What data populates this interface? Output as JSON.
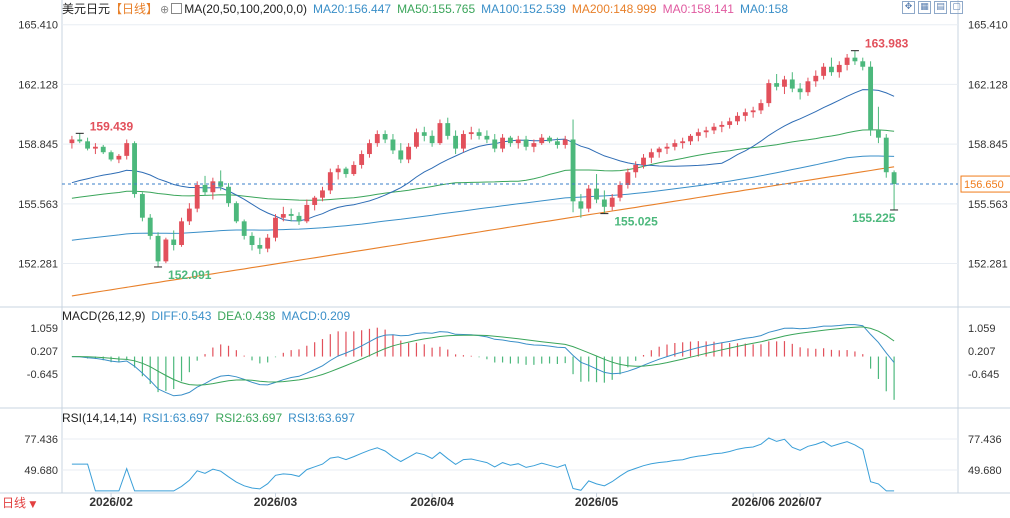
{
  "header": {
    "symbol": "美元日元",
    "period_tag": "【日线】",
    "period_icon": "circle-plus-icon",
    "ma_icon": "checkbox-icon",
    "ma_label": "MA(20,50,100,200,0,0)",
    "ma20": "MA20:156.447",
    "ma50": "MA50:155.765",
    "ma100": "MA100:152.539",
    "ma200": "MA200:148.999",
    "ma0a": "MA0:158.141",
    "ma0b": "MA0:158"
  },
  "macd_header": {
    "label": "MACD(26,12,9)",
    "diff": "DIFF:0.543",
    "dea": "DEA:0.438",
    "macd": "MACD:0.209"
  },
  "rsi_header": {
    "label": "RSI(14,14,14)",
    "rsi1": "RSI1:63.697",
    "rsi2": "RSI2:63.697",
    "rsi3": "RSI3:63.697"
  },
  "toolbar": {
    "icons": [
      "crosshair-icon",
      "grid-icon",
      "layout-icon",
      "window-icon"
    ]
  },
  "period_selector": {
    "label": "日线",
    "icon": "dropdown-icon"
  },
  "colors": {
    "up": "#e2505b",
    "down": "#4cb87c",
    "ma20": "#2f6db5",
    "ma50": "#3aa55a",
    "ma100": "#3a8fc8",
    "ma200": "#e8802a",
    "diff": "#3a8fc8",
    "dea": "#3aa55a",
    "rsi": "#3a9fd8",
    "ma0": "#e05aa0",
    "price_tag": "#f07b1a",
    "grid": "#e8edf3",
    "axis_text": "#333333"
  },
  "chart_data": [
    {
      "type": "candlestick",
      "name": "美元日元 日线",
      "y_ticks": [
        "165.410",
        "162.128",
        "158.845",
        "155.563",
        "152.281"
      ],
      "ylim": [
        150.0,
        166.0
      ],
      "x_month_labels": [
        "2026/02",
        "2026/03",
        "2026/04",
        "2026/05",
        "2026/06",
        "2026/07"
      ],
      "current_price": "156.650",
      "annotations": {
        "high_start": "159.439",
        "low_feb": "152.091",
        "low_may": "155.025",
        "high_jul": "163.983",
        "low_end": "155.225"
      },
      "ohlc": [
        [
          158.9,
          159.3,
          158.6,
          159.1
        ],
        [
          159.1,
          159.44,
          158.9,
          159.0
        ],
        [
          159.0,
          159.2,
          158.5,
          158.6
        ],
        [
          158.6,
          158.9,
          158.3,
          158.7
        ],
        [
          158.7,
          158.8,
          158.3,
          158.4
        ],
        [
          158.4,
          158.5,
          157.9,
          158.0
        ],
        [
          158.0,
          158.3,
          157.8,
          158.2
        ],
        [
          158.2,
          159.1,
          158.0,
          158.9
        ],
        [
          158.9,
          159.0,
          155.9,
          156.1
        ],
        [
          156.1,
          156.2,
          154.6,
          154.8
        ],
        [
          154.8,
          155.0,
          153.6,
          153.8
        ],
        [
          153.8,
          154.0,
          152.09,
          152.4
        ],
        [
          152.4,
          153.7,
          152.3,
          153.6
        ],
        [
          153.6,
          154.1,
          153.0,
          153.3
        ],
        [
          153.3,
          154.8,
          153.2,
          154.6
        ],
        [
          154.6,
          155.6,
          154.4,
          155.3
        ],
        [
          155.3,
          156.8,
          155.1,
          156.6
        ],
        [
          156.6,
          157.1,
          156.0,
          156.2
        ],
        [
          156.2,
          157.0,
          155.8,
          156.8
        ],
        [
          156.8,
          157.4,
          156.3,
          156.5
        ],
        [
          156.5,
          156.7,
          155.4,
          155.6
        ],
        [
          155.6,
          155.7,
          154.5,
          154.6
        ],
        [
          154.6,
          154.7,
          153.6,
          153.8
        ],
        [
          153.8,
          154.0,
          153.0,
          153.3
        ],
        [
          153.3,
          153.7,
          152.8,
          153.1
        ],
        [
          153.1,
          153.9,
          152.9,
          153.7
        ],
        [
          153.7,
          155.0,
          153.5,
          154.8
        ],
        [
          154.8,
          155.4,
          154.6,
          155.0
        ],
        [
          155.0,
          155.3,
          154.6,
          154.9
        ],
        [
          154.9,
          155.1,
          154.4,
          154.6
        ],
        [
          154.6,
          155.8,
          154.5,
          155.5
        ],
        [
          155.5,
          156.0,
          155.2,
          155.9
        ],
        [
          155.9,
          156.5,
          155.7,
          156.3
        ],
        [
          156.3,
          157.5,
          156.1,
          157.3
        ],
        [
          157.3,
          157.7,
          156.9,
          157.5
        ],
        [
          157.5,
          157.6,
          157.0,
          157.2
        ],
        [
          157.2,
          157.9,
          157.1,
          157.7
        ],
        [
          157.7,
          158.5,
          157.5,
          158.3
        ],
        [
          158.3,
          159.1,
          158.1,
          158.9
        ],
        [
          158.9,
          159.6,
          158.7,
          159.4
        ],
        [
          159.4,
          159.6,
          158.9,
          159.1
        ],
        [
          159.1,
          159.4,
          158.3,
          158.5
        ],
        [
          158.5,
          158.9,
          157.8,
          158.0
        ],
        [
          158.0,
          158.9,
          157.8,
          158.7
        ],
        [
          158.7,
          159.7,
          158.6,
          159.5
        ],
        [
          159.5,
          159.8,
          159.0,
          159.3
        ],
        [
          159.3,
          159.6,
          158.7,
          158.9
        ],
        [
          158.9,
          160.2,
          158.8,
          160.0
        ],
        [
          160.0,
          160.3,
          159.1,
          159.3
        ],
        [
          159.3,
          159.6,
          158.3,
          158.6
        ],
        [
          158.6,
          159.6,
          158.4,
          159.4
        ],
        [
          159.4,
          159.8,
          159.1,
          159.5
        ],
        [
          159.5,
          159.7,
          159.1,
          159.3
        ],
        [
          159.3,
          159.6,
          158.9,
          159.1
        ],
        [
          159.1,
          159.4,
          158.4,
          158.6
        ],
        [
          158.6,
          159.4,
          158.4,
          159.2
        ],
        [
          159.2,
          159.3,
          158.7,
          158.9
        ],
        [
          158.9,
          159.3,
          158.6,
          159.1
        ],
        [
          159.1,
          159.3,
          158.5,
          158.7
        ],
        [
          158.7,
          159.1,
          158.4,
          158.9
        ],
        [
          158.9,
          159.4,
          158.8,
          159.2
        ],
        [
          159.2,
          159.3,
          158.9,
          159.0
        ],
        [
          159.0,
          159.2,
          158.6,
          158.8
        ],
        [
          158.8,
          159.3,
          158.6,
          159.1
        ],
        [
          159.1,
          160.2,
          155.1,
          155.7
        ],
        [
          155.7,
          156.1,
          154.8,
          155.3
        ],
        [
          155.3,
          156.6,
          155.1,
          156.4
        ],
        [
          156.4,
          157.2,
          155.6,
          155.8
        ],
        [
          155.8,
          156.3,
          155.03,
          155.4
        ],
        [
          155.4,
          156.1,
          155.2,
          155.9
        ],
        [
          155.9,
          156.8,
          155.7,
          156.6
        ],
        [
          156.6,
          157.5,
          156.4,
          157.3
        ],
        [
          157.3,
          157.9,
          157.0,
          157.7
        ],
        [
          157.7,
          158.3,
          157.5,
          158.1
        ],
        [
          158.1,
          158.6,
          157.8,
          158.4
        ],
        [
          158.4,
          158.7,
          158.1,
          158.6
        ],
        [
          158.6,
          158.9,
          158.3,
          158.7
        ],
        [
          158.7,
          159.1,
          158.5,
          158.9
        ],
        [
          158.9,
          159.2,
          158.6,
          159.0
        ],
        [
          159.0,
          159.4,
          158.8,
          159.3
        ],
        [
          159.3,
          159.7,
          159.0,
          159.5
        ],
        [
          159.5,
          159.8,
          159.2,
          159.6
        ],
        [
          159.6,
          160.0,
          159.4,
          159.8
        ],
        [
          159.8,
          160.1,
          159.5,
          159.9
        ],
        [
          159.9,
          160.3,
          159.7,
          160.1
        ],
        [
          160.1,
          160.6,
          159.9,
          160.4
        ],
        [
          160.4,
          160.8,
          160.1,
          160.6
        ],
        [
          160.6,
          160.9,
          160.3,
          160.7
        ],
        [
          160.7,
          161.3,
          160.5,
          161.1
        ],
        [
          161.1,
          162.4,
          160.9,
          162.2
        ],
        [
          162.2,
          162.7,
          161.8,
          162.0
        ],
        [
          162.0,
          162.6,
          161.6,
          162.4
        ],
        [
          162.4,
          162.8,
          161.7,
          161.9
        ],
        [
          161.9,
          162.2,
          161.3,
          161.7
        ],
        [
          161.7,
          162.5,
          161.5,
          162.3
        ],
        [
          162.3,
          162.9,
          162.0,
          162.6
        ],
        [
          162.6,
          163.3,
          162.4,
          163.1
        ],
        [
          163.1,
          163.6,
          162.6,
          162.8
        ],
        [
          162.8,
          163.4,
          162.5,
          163.2
        ],
        [
          163.2,
          163.8,
          162.9,
          163.6
        ],
        [
          163.6,
          163.98,
          163.2,
          163.4
        ],
        [
          163.4,
          163.6,
          162.9,
          163.1
        ],
        [
          163.1,
          163.4,
          159.3,
          159.6
        ],
        [
          159.6,
          160.9,
          158.9,
          159.2
        ],
        [
          159.2,
          159.4,
          157.0,
          157.3
        ],
        [
          157.3,
          157.4,
          155.225,
          156.65
        ]
      ]
    },
    {
      "type": "bar+line",
      "name": "MACD",
      "y_ticks": [
        "1.059",
        "0.207",
        "-0.645"
      ],
      "ylim": [
        -1.9,
        1.35
      ]
    },
    {
      "type": "line",
      "name": "RSI",
      "y_ticks": [
        "77.436",
        "49.680"
      ],
      "ylim": [
        30,
        90
      ]
    }
  ]
}
